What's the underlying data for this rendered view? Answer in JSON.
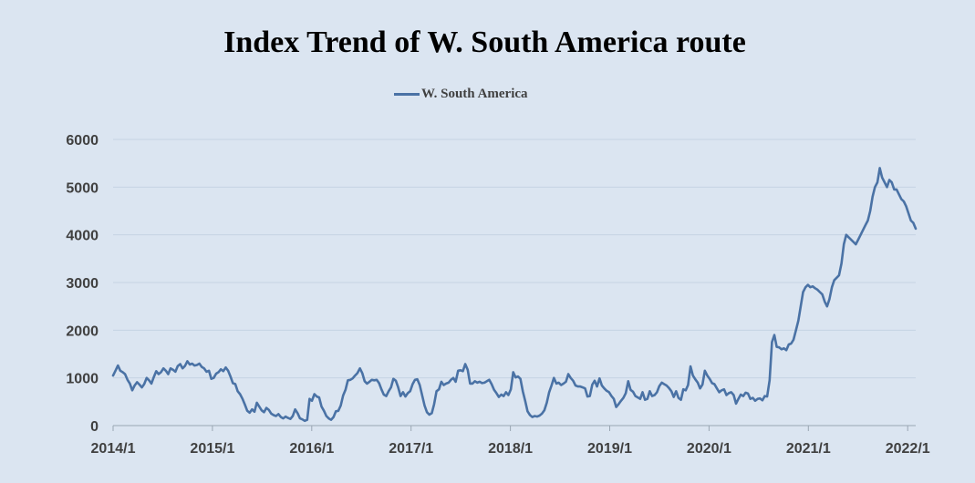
{
  "chart_data": {
    "type": "line",
    "title": "Index Trend of W. South America  route",
    "xlabel": "",
    "ylabel": "",
    "ylim": [
      0,
      6000
    ],
    "yticks": [
      "0",
      "1000",
      "2000",
      "3000",
      "4000",
      "5000",
      "6000"
    ],
    "xticks": [
      "2014/1",
      "2015/1",
      "2016/1",
      "2017/1",
      "2018/1",
      "2019/1",
      "2020/1",
      "2021/1",
      "2022/1"
    ],
    "grid": true,
    "legend_position": "top-center",
    "colors": {
      "series": "#4a72a5",
      "background": "#dbe5f1",
      "grid": "#c5d3e3"
    },
    "series": [
      {
        "name": "W. South America",
        "x_start": "2014/1",
        "x_step": "1 week",
        "values": [
          1050,
          1150,
          1260,
          1150,
          1120,
          1080,
          960,
          880,
          740,
          840,
          910,
          860,
          800,
          870,
          1000,
          950,
          880,
          1020,
          1140,
          1080,
          1120,
          1200,
          1150,
          1080,
          1200,
          1170,
          1130,
          1250,
          1290,
          1200,
          1250,
          1350,
          1280,
          1300,
          1260,
          1270,
          1300,
          1230,
          1200,
          1130,
          1150,
          980,
          1000,
          1090,
          1120,
          1180,
          1140,
          1220,
          1150,
          1030,
          890,
          870,
          720,
          660,
          560,
          440,
          310,
          270,
          340,
          290,
          480,
          400,
          320,
          280,
          370,
          330,
          250,
          220,
          200,
          240,
          180,
          150,
          190,
          160,
          140,
          200,
          340,
          260,
          150,
          130,
          100,
          120,
          560,
          520,
          660,
          610,
          590,
          400,
          310,
          200,
          150,
          120,
          180,
          300,
          310,
          420,
          630,
          750,
          950,
          960,
          990,
          1050,
          1100,
          1200,
          1100,
          930,
          880,
          920,
          960,
          950,
          960,
          890,
          760,
          650,
          620,
          720,
          800,
          980,
          940,
          800,
          620,
          700,
          610,
          680,
          720,
          870,
          960,
          970,
          850,
          630,
          420,
          280,
          230,
          260,
          450,
          720,
          760,
          920,
          850,
          880,
          900,
          960,
          1000,
          920,
          1150,
          1160,
          1140,
          1290,
          1170,
          880,
          880,
          930,
          900,
          920,
          890,
          900,
          930,
          960,
          870,
          750,
          680,
          600,
          650,
          620,
          700,
          640,
          760,
          1120,
          1010,
          1030,
          980,
          720,
          520,
          300,
          220,
          180,
          200,
          190,
          210,
          250,
          320,
          480,
          700,
          840,
          1000,
          880,
          900,
          850,
          880,
          920,
          1080,
          1000,
          940,
          840,
          820,
          820,
          800,
          780,
          610,
          620,
          860,
          940,
          820,
          990,
          840,
          780,
          730,
          700,
          620,
          560,
          390,
          450,
          520,
          580,
          680,
          930,
          750,
          710,
          620,
          590,
          560,
          700,
          540,
          560,
          720,
          620,
          640,
          700,
          830,
          900,
          870,
          840,
          790,
          720,
          600,
          720,
          580,
          540,
          760,
          740,
          850,
          1240,
          1050,
          970,
          900,
          780,
          860,
          1150,
          1050,
          980,
          890,
          870,
          780,
          700,
          740,
          760,
          640,
          680,
          700,
          640,
          460,
          560,
          650,
          620,
          690,
          670,
          560,
          580,
          520,
          560,
          570,
          530,
          620,
          610,
          950,
          1750,
          1900,
          1650,
          1640,
          1600,
          1620,
          1580,
          1700,
          1720,
          1800,
          2000,
          2200,
          2500,
          2800,
          2900,
          2950,
          2900,
          2920,
          2880,
          2850,
          2800,
          2750,
          2600,
          2500,
          2650,
          2900,
          3050,
          3100,
          3150,
          3400,
          3800,
          4000,
          3950,
          3900,
          3850,
          3800,
          3900,
          4000,
          4100,
          4200,
          4300,
          4500,
          4800,
          5000,
          5100,
          5400,
          5200,
          5100,
          5000,
          5150,
          5100,
          4950,
          4950,
          4850,
          4750,
          4700,
          4600,
          4450,
          4300,
          4250,
          4130
        ]
      }
    ]
  }
}
